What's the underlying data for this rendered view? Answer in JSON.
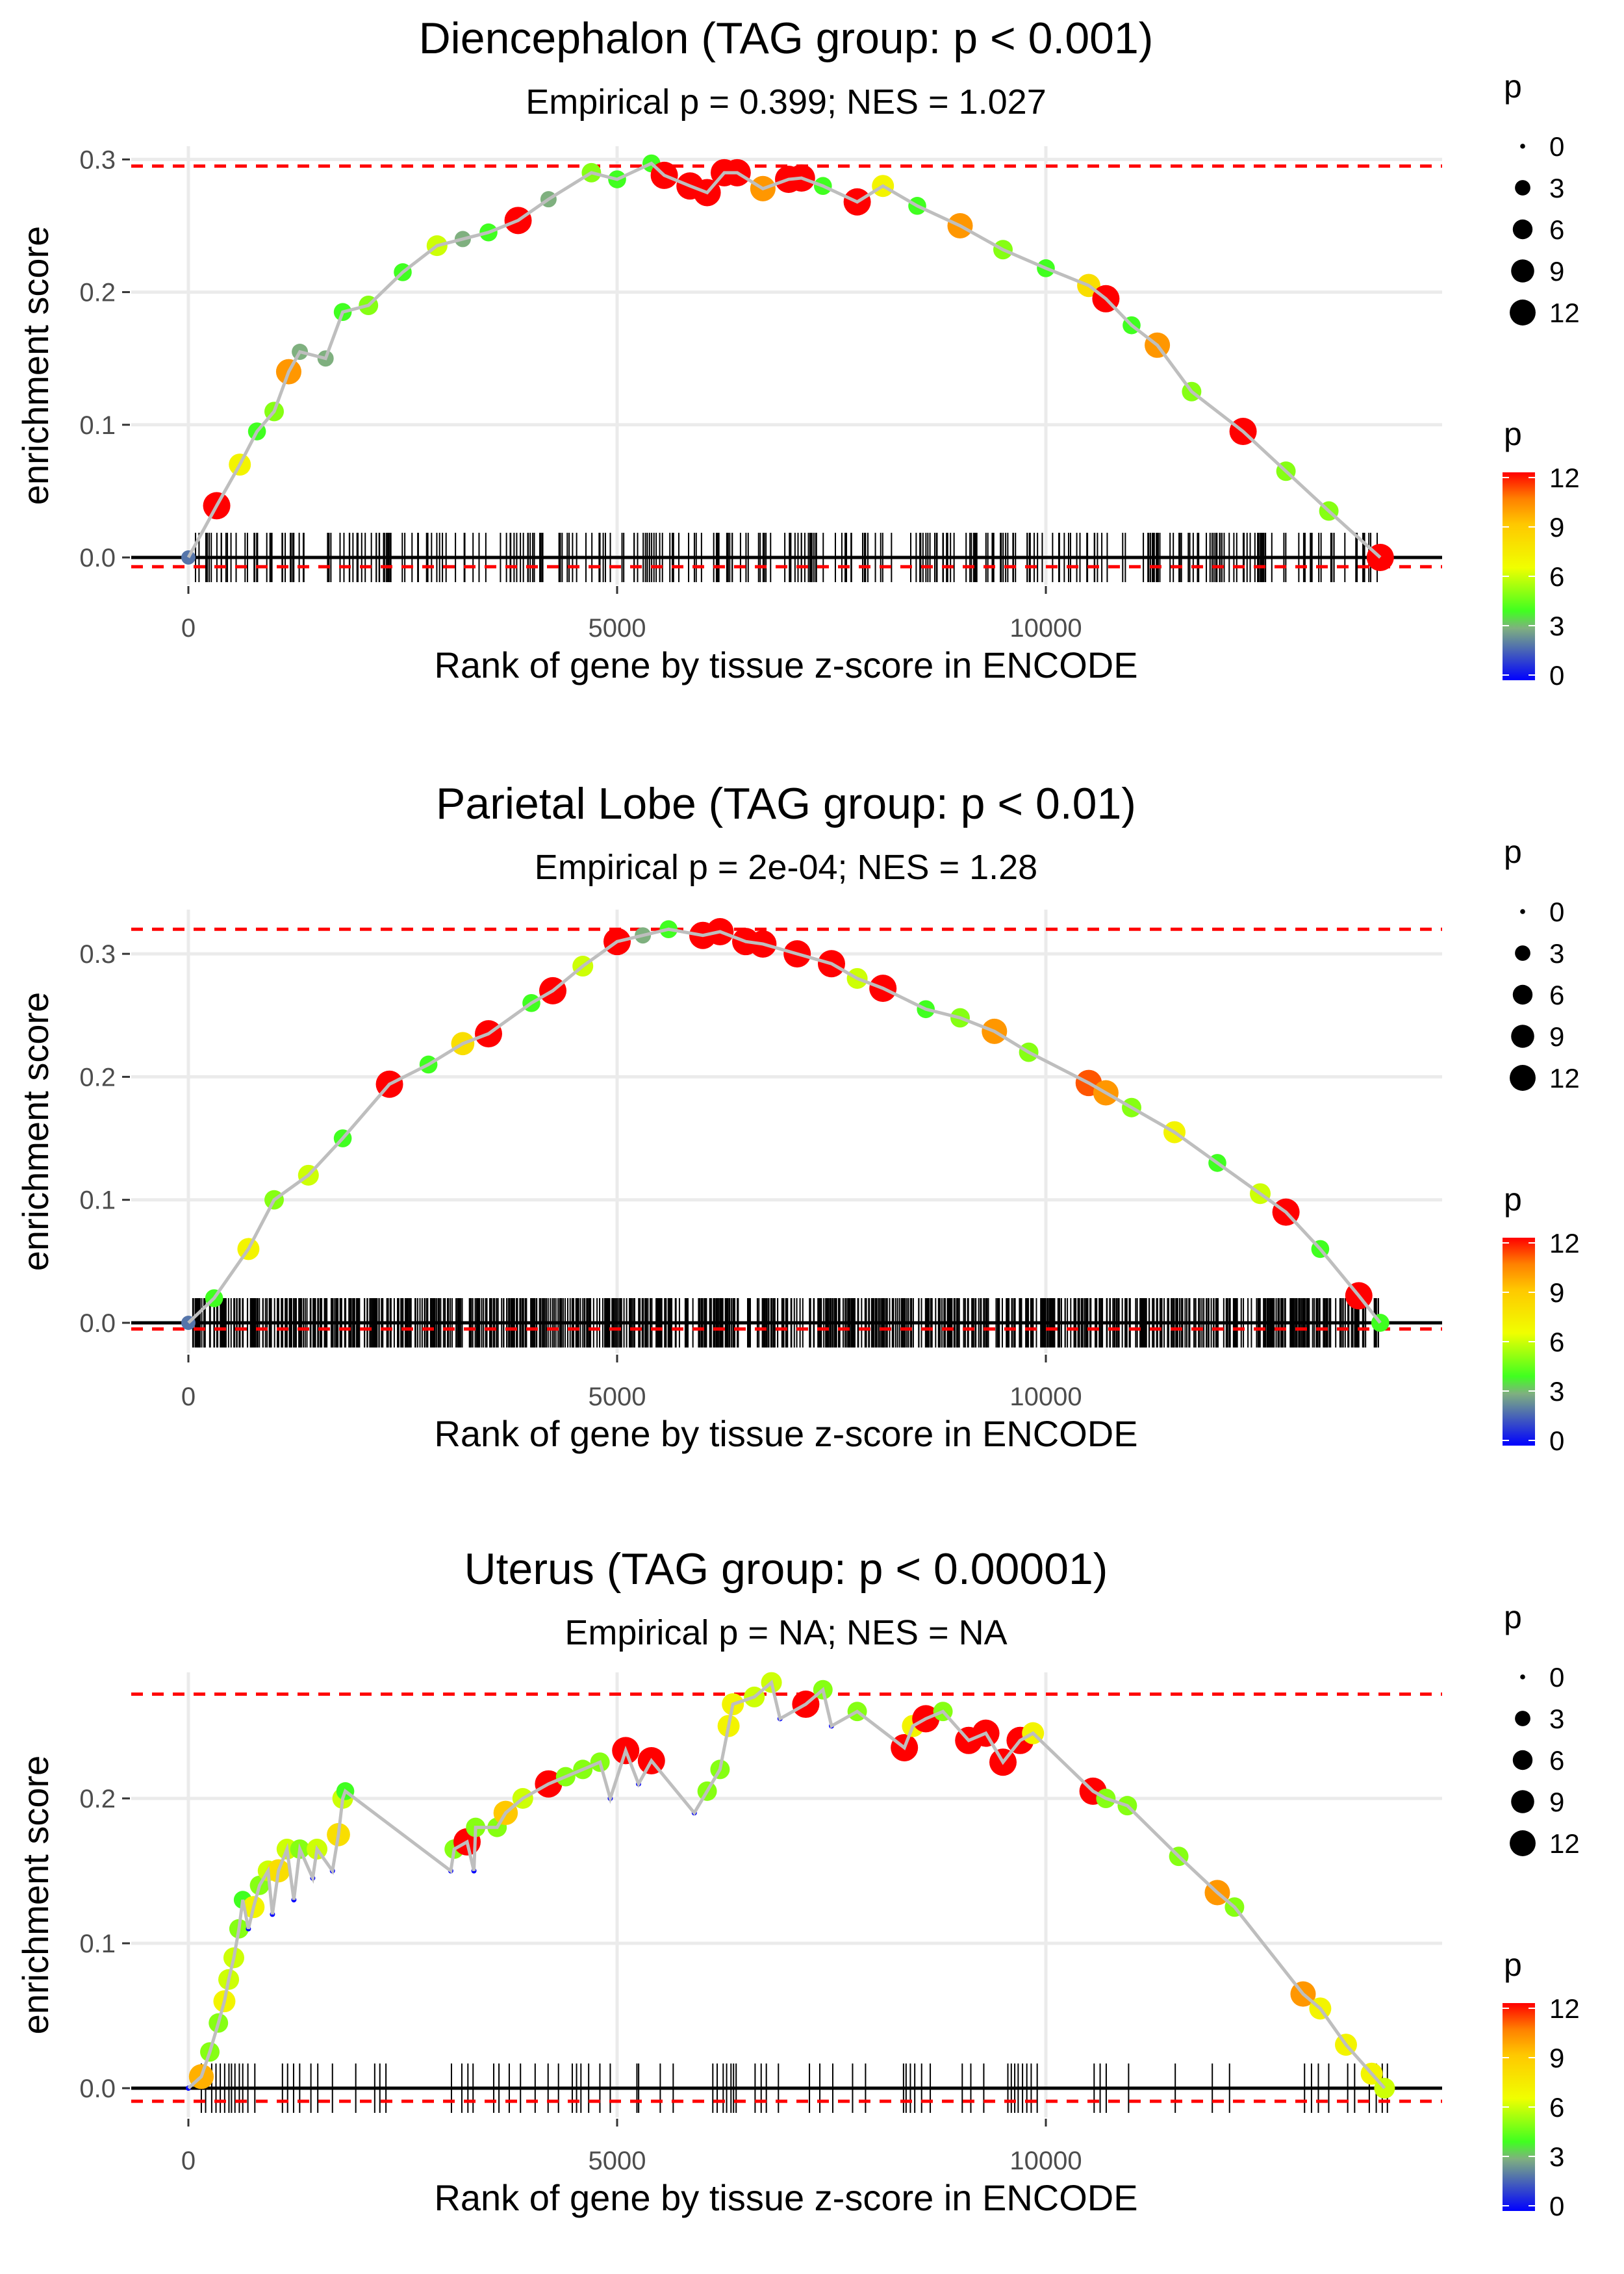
{
  "chart_data": [
    {
      "type": "scatter",
      "title": "Diencephalon (TAG group: p < 0.001)",
      "subtitle": "Empirical p = 0.399; NES = 1.027",
      "xlabel": "Rank of gene by tissue z-score in ENCODE",
      "ylabel": "enrichment score",
      "xlim": [
        -600,
        14700
      ],
      "ylim": [
        -0.02,
        0.31
      ],
      "xticks": [
        0,
        5000,
        10000
      ],
      "xtick_labels": [
        "0",
        "5000",
        "10000"
      ],
      "yticks": [
        0.0,
        0.1,
        0.2,
        0.3
      ],
      "ytick_labels": [
        "0.0",
        "0.1",
        "0.2",
        "0.3"
      ],
      "max_es_line": 0.295,
      "min_es_line": -0.007,
      "rug": {
        "n": 330,
        "seed": 11,
        "range": [
          0,
          13900
        ]
      },
      "points": [
        [
          0,
          0,
          2
        ],
        [
          330,
          0.039,
          12
        ],
        [
          600,
          0.07,
          7
        ],
        [
          800,
          0.095,
          4
        ],
        [
          1000,
          0.11,
          5
        ],
        [
          1170,
          0.14,
          10
        ],
        [
          1300,
          0.155,
          3
        ],
        [
          1600,
          0.15,
          3
        ],
        [
          1800,
          0.185,
          4
        ],
        [
          2100,
          0.19,
          5
        ],
        [
          2500,
          0.215,
          4
        ],
        [
          2900,
          0.235,
          6
        ],
        [
          3200,
          0.24,
          3
        ],
        [
          3500,
          0.245,
          4
        ],
        [
          3845,
          0.254,
          12
        ],
        [
          4200,
          0.27,
          3
        ],
        [
          4700,
          0.29,
          5
        ],
        [
          5000,
          0.285,
          4
        ],
        [
          5400,
          0.297,
          4
        ],
        [
          5550,
          0.288,
          12
        ],
        [
          5850,
          0.28,
          12
        ],
        [
          6050,
          0.275,
          12
        ],
        [
          6250,
          0.29,
          12
        ],
        [
          6400,
          0.29,
          12
        ],
        [
          6700,
          0.278,
          10
        ],
        [
          7000,
          0.285,
          12
        ],
        [
          7150,
          0.286,
          12
        ],
        [
          7400,
          0.28,
          4
        ],
        [
          7800,
          0.268,
          12
        ],
        [
          8100,
          0.28,
          7
        ],
        [
          8500,
          0.265,
          4
        ],
        [
          9000,
          0.25,
          10
        ],
        [
          9500,
          0.232,
          5
        ],
        [
          10000,
          0.218,
          4
        ],
        [
          10500,
          0.205,
          8
        ],
        [
          10700,
          0.195,
          12
        ],
        [
          11000,
          0.175,
          4
        ],
        [
          11300,
          0.16,
          10
        ],
        [
          11700,
          0.125,
          5
        ],
        [
          12300,
          0.095,
          12
        ],
        [
          12800,
          0.065,
          5
        ],
        [
          13300,
          0.035,
          5
        ],
        [
          13900,
          0.0,
          12
        ]
      ]
    },
    {
      "type": "scatter",
      "title": "Parietal Lobe (TAG group: p < 0.01)",
      "subtitle": "Empirical p = 2e-04; NES = 1.28",
      "xlabel": "Rank of gene by tissue z-score in ENCODE",
      "ylabel": "enrichment score",
      "xlim": [
        -600,
        14700
      ],
      "ylim": [
        -0.02,
        0.33
      ],
      "xticks": [
        0,
        5000,
        10000
      ],
      "xtick_labels": [
        "0",
        "5000",
        "10000"
      ],
      "yticks": [
        0.0,
        0.1,
        0.2,
        0.3
      ],
      "ytick_labels": [
        "0.0",
        "0.1",
        "0.2",
        "0.3"
      ],
      "max_es_line": 0.32,
      "min_es_line": -0.005,
      "rug": {
        "n": 950,
        "seed": 23,
        "range": [
          50,
          13950
        ]
      },
      "points": [
        [
          0,
          0,
          2
        ],
        [
          300,
          0.02,
          4
        ],
        [
          700,
          0.06,
          7
        ],
        [
          1000,
          0.1,
          5
        ],
        [
          1400,
          0.12,
          6
        ],
        [
          1800,
          0.15,
          4
        ],
        [
          2345,
          0.194,
          12
        ],
        [
          2800,
          0.21,
          4
        ],
        [
          3200,
          0.227,
          8
        ],
        [
          3500,
          0.235,
          12
        ],
        [
          4000,
          0.26,
          4
        ],
        [
          4250,
          0.27,
          12
        ],
        [
          4600,
          0.29,
          6
        ],
        [
          5000,
          0.31,
          12
        ],
        [
          5300,
          0.315,
          3
        ],
        [
          5600,
          0.32,
          4
        ],
        [
          6000,
          0.315,
          12
        ],
        [
          6200,
          0.318,
          12
        ],
        [
          6500,
          0.31,
          12
        ],
        [
          6700,
          0.308,
          12
        ],
        [
          7100,
          0.3,
          12
        ],
        [
          7500,
          0.292,
          12
        ],
        [
          7800,
          0.28,
          6
        ],
        [
          8100,
          0.272,
          12
        ],
        [
          8600,
          0.255,
          4
        ],
        [
          9000,
          0.248,
          5
        ],
        [
          9400,
          0.237,
          10
        ],
        [
          9800,
          0.22,
          5
        ],
        [
          10500,
          0.195,
          11
        ],
        [
          10700,
          0.187,
          10
        ],
        [
          11000,
          0.175,
          5
        ],
        [
          11500,
          0.155,
          7
        ],
        [
          12000,
          0.13,
          4
        ],
        [
          12500,
          0.105,
          6
        ],
        [
          12800,
          0.09,
          12
        ],
        [
          13200,
          0.06,
          4
        ],
        [
          13650,
          0.022,
          12
        ],
        [
          13900,
          0.0,
          4
        ]
      ]
    },
    {
      "type": "scatter",
      "title": "Uterus (TAG group: p < 0.00001)",
      "subtitle": "Empirical p = NA; NES = NA",
      "xlabel": "Rank of gene by tissue z-score in ENCODE",
      "ylabel": "enrichment score",
      "xlim": [
        -600,
        14700
      ],
      "ylim": [
        -0.02,
        0.29
      ],
      "xticks": [
        0,
        5000,
        10000
      ],
      "xtick_labels": [
        "0",
        "5000",
        "10000"
      ],
      "yticks": [
        0.0,
        0.1,
        0.2
      ],
      "ytick_labels": [
        "0.0",
        "0.1",
        "0.2"
      ],
      "max_es_line": 0.272,
      "min_es_line": -0.009,
      "rug_ranks": [
        151,
        201,
        272,
        322,
        372,
        423,
        473,
        503,
        543,
        594,
        634,
        694,
        775,
        1097,
        1157,
        1227,
        1298,
        1429,
        1509,
        1680,
        1952,
        2173,
        2233,
        2304,
        3068,
        3189,
        3260,
        3320,
        3561,
        3622,
        3742,
        3873,
        4044,
        4195,
        4316,
        4477,
        4527,
        4578,
        4668,
        4799,
        4920,
        5231,
        5251,
        5503,
        5654,
        6116,
        6167,
        6237,
        6277,
        6328,
        6358,
        6388,
        6609,
        6680,
        6740,
        6881,
        7243,
        7364,
        7515,
        7746,
        7897,
        8340,
        8370,
        8420,
        8471,
        8551,
        8652,
        9025,
        9125,
        9276,
        9557,
        9597,
        9637,
        9677,
        9728,
        9778,
        9829,
        9899,
        10563,
        10633,
        10704,
        10965,
        11509,
        11941,
        12142,
        13017,
        13098,
        13178,
        13299,
        13520,
        13601,
        13772,
        13853,
        13923,
        13983
      ],
      "points": [
        [
          0,
          0,
          0
        ],
        [
          151,
          0.008,
          9.5
        ],
        [
          250,
          0.025,
          5
        ],
        [
          350,
          0.045,
          5
        ],
        [
          420,
          0.06,
          7
        ],
        [
          470,
          0.075,
          6
        ],
        [
          530,
          0.09,
          6
        ],
        [
          590,
          0.11,
          5
        ],
        [
          634,
          0.13,
          4
        ],
        [
          700,
          0.11,
          0
        ],
        [
          760,
          0.125,
          7
        ],
        [
          830,
          0.14,
          5
        ],
        [
          930,
          0.15,
          6
        ],
        [
          980,
          0.12,
          0
        ],
        [
          1050,
          0.15,
          8
        ],
        [
          1150,
          0.165,
          6
        ],
        [
          1230,
          0.13,
          0
        ],
        [
          1300,
          0.165,
          5
        ],
        [
          1450,
          0.145,
          0
        ],
        [
          1500,
          0.165,
          6
        ],
        [
          1680,
          0.15,
          0
        ],
        [
          1750,
          0.175,
          8
        ],
        [
          1800,
          0.2,
          6
        ],
        [
          1830,
          0.205,
          4
        ],
        [
          3060,
          0.15,
          0
        ],
        [
          3100,
          0.165,
          5
        ],
        [
          3250,
          0.17,
          12
        ],
        [
          3330,
          0.15,
          0
        ],
        [
          3350,
          0.18,
          5
        ],
        [
          3600,
          0.18,
          5
        ],
        [
          3700,
          0.19,
          9
        ],
        [
          3900,
          0.2,
          6
        ],
        [
          4200,
          0.21,
          12
        ],
        [
          4400,
          0.215,
          5
        ],
        [
          4600,
          0.22,
          5
        ],
        [
          4800,
          0.225,
          5
        ],
        [
          4920,
          0.2,
          0
        ],
        [
          5100,
          0.233,
          12
        ],
        [
          5250,
          0.21,
          0
        ],
        [
          5400,
          0.226,
          12
        ],
        [
          5900,
          0.19,
          0
        ],
        [
          6050,
          0.205,
          5
        ],
        [
          6200,
          0.22,
          5
        ],
        [
          6300,
          0.25,
          7
        ],
        [
          6350,
          0.265,
          7
        ],
        [
          6600,
          0.27,
          6
        ],
        [
          6800,
          0.28,
          6
        ],
        [
          6900,
          0.255,
          0
        ],
        [
          7200,
          0.265,
          12
        ],
        [
          7400,
          0.275,
          5
        ],
        [
          7500,
          0.25,
          0
        ],
        [
          7800,
          0.26,
          5
        ],
        [
          8350,
          0.235,
          12
        ],
        [
          8450,
          0.25,
          7
        ],
        [
          8600,
          0.255,
          12
        ],
        [
          8800,
          0.26,
          5
        ],
        [
          9100,
          0.24,
          12
        ],
        [
          9300,
          0.245,
          12
        ],
        [
          9500,
          0.225,
          12
        ],
        [
          9700,
          0.24,
          12
        ],
        [
          9850,
          0.245,
          7
        ],
        [
          10550,
          0.205,
          12
        ],
        [
          10700,
          0.2,
          5
        ],
        [
          10950,
          0.195,
          5
        ],
        [
          11550,
          0.16,
          5
        ],
        [
          12000,
          0.135,
          10
        ],
        [
          12200,
          0.125,
          5
        ],
        [
          13000,
          0.065,
          10
        ],
        [
          13200,
          0.055,
          7
        ],
        [
          13500,
          0.03,
          7
        ],
        [
          13800,
          0.01,
          7
        ],
        [
          13950,
          0.0,
          6
        ]
      ]
    }
  ],
  "legend": {
    "size_title": "p",
    "size_breaks": [
      0,
      3,
      6,
      9,
      12
    ],
    "size_labels": [
      "0",
      "3",
      "6",
      "9",
      "12"
    ],
    "color_title": "p",
    "color_breaks": [
      0,
      3,
      6,
      9,
      12
    ],
    "color_labels": [
      "0",
      "3",
      "6",
      "9",
      "12"
    ],
    "color_stops": [
      [
        0,
        "#0000ff"
      ],
      [
        3,
        "#7fb07f"
      ],
      [
        4,
        "#40ff20"
      ],
      [
        6.5,
        "#f0ff00"
      ],
      [
        9,
        "#ffc800"
      ],
      [
        10.5,
        "#ff7f00"
      ],
      [
        12,
        "#ff0000"
      ]
    ]
  },
  "colors": {
    "line": "#bebebe",
    "threshold": "#ff0000",
    "grid": "#ebebeb",
    "zero": "#000000"
  }
}
